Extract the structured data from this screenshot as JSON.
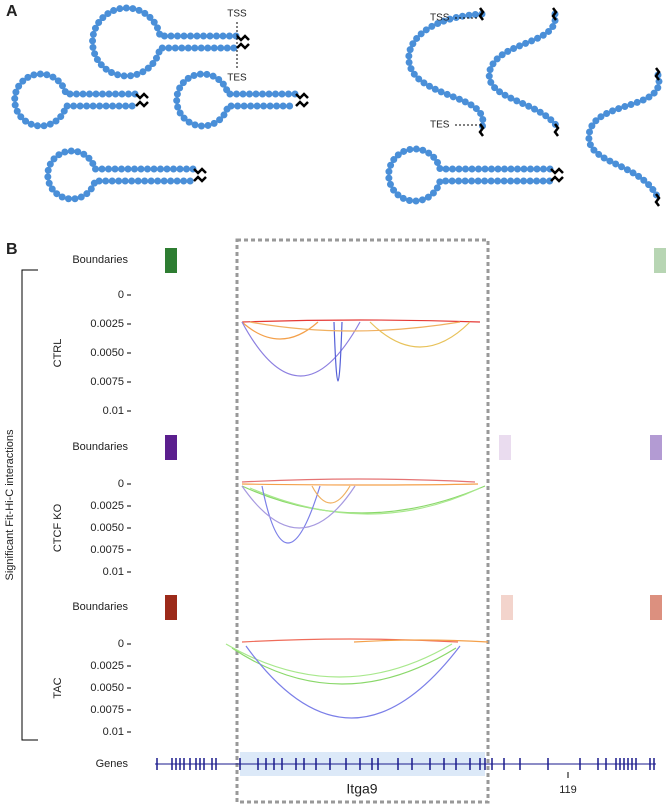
{
  "panel_a": {
    "label": "A",
    "left": {
      "tss": "TSS",
      "tes": "TES"
    },
    "right": {
      "tss": "TSS",
      "tes": "TES"
    }
  },
  "panel_b": {
    "label": "B",
    "y_axis_title": "Significant Fit-Hi-C interactions",
    "tracks": [
      {
        "name": "CTRL",
        "boundaries": "Boundaries",
        "ticks": [
          "0",
          "0.0025",
          "0.0050",
          "0.0075",
          "0.01"
        ]
      },
      {
        "name": "CTCF KO",
        "boundaries": "Boundaries",
        "ticks": [
          "0",
          "0.0025",
          "0.0050",
          "0.0075",
          "0.01"
        ]
      },
      {
        "name": "TAC",
        "boundaries": "Boundaries",
        "ticks": [
          "0",
          "0.0025",
          "0.0050",
          "0.0075",
          "0.01"
        ]
      }
    ],
    "genes": {
      "label": "Genes",
      "gene": "Itga9",
      "coordinate": "119"
    }
  }
}
